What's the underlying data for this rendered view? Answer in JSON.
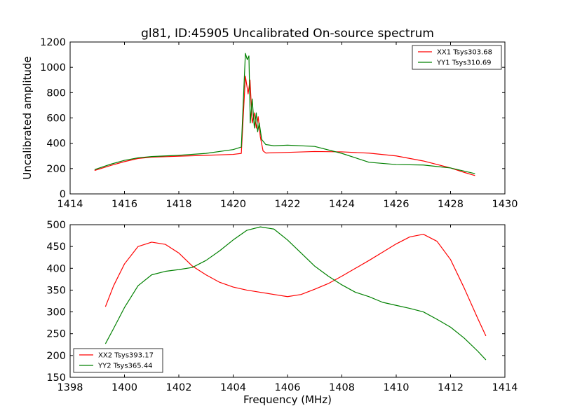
{
  "figure": {
    "title": "gl81, ID:45905 Uncalibrated On-source spectrum"
  },
  "chart_data": [
    {
      "type": "line",
      "title": "gl81, ID:45905 Uncalibrated On-source spectrum",
      "xlabel": "",
      "ylabel": "Uncalibrated amplitude",
      "xlim": [
        1414,
        1430
      ],
      "ylim": [
        0,
        1200
      ],
      "xticks": [
        1414,
        1416,
        1418,
        1420,
        1422,
        1424,
        1426,
        1428,
        1430
      ],
      "yticks": [
        0,
        200,
        400,
        600,
        800,
        1000,
        1200
      ],
      "grid": false,
      "legend": "top-right",
      "series": [
        {
          "name": "XX1 Tsys303.68",
          "color": "#ff0000",
          "x": [
            1414.9,
            1415.5,
            1416.0,
            1416.5,
            1417.0,
            1418.0,
            1419.0,
            1420.0,
            1420.3,
            1420.45,
            1420.55,
            1420.62,
            1420.7,
            1420.78,
            1420.85,
            1420.92,
            1421.0,
            1421.1,
            1421.2,
            1422.0,
            1423.0,
            1424.0,
            1425.0,
            1426.0,
            1427.0,
            1428.0,
            1428.5,
            1428.9
          ],
          "y": [
            185,
            225,
            255,
            280,
            290,
            298,
            305,
            312,
            320,
            930,
            790,
            900,
            560,
            640,
            520,
            610,
            450,
            340,
            323,
            328,
            335,
            332,
            322,
            300,
            260,
            205,
            170,
            145
          ]
        },
        {
          "name": "YY1 Tsys310.69",
          "color": "#008000",
          "x": [
            1414.9,
            1415.5,
            1416.0,
            1416.5,
            1417.0,
            1418.0,
            1419.0,
            1420.0,
            1420.3,
            1420.45,
            1420.52,
            1420.58,
            1420.63,
            1420.7,
            1420.78,
            1420.85,
            1420.9,
            1420.96,
            1421.05,
            1421.2,
            1421.5,
            1422.0,
            1423.0,
            1424.0,
            1425.0,
            1426.0,
            1427.0,
            1428.0,
            1428.5,
            1428.9
          ],
          "y": [
            192,
            235,
            265,
            285,
            295,
            305,
            320,
            350,
            370,
            1110,
            1060,
            1090,
            560,
            750,
            520,
            640,
            490,
            560,
            430,
            390,
            380,
            385,
            375,
            320,
            250,
            232,
            228,
            205,
            180,
            160
          ]
        }
      ]
    },
    {
      "type": "line",
      "title": "",
      "xlabel": "Frequency (MHz)",
      "ylabel": "",
      "xlim": [
        1398,
        1414
      ],
      "ylim": [
        150,
        500
      ],
      "xticks": [
        1398,
        1400,
        1402,
        1404,
        1406,
        1408,
        1410,
        1412,
        1414
      ],
      "yticks": [
        150,
        200,
        250,
        300,
        350,
        400,
        450,
        500
      ],
      "grid": false,
      "legend": "bottom-left",
      "series": [
        {
          "name": "XX2 Tsys393.17",
          "color": "#ff0000",
          "x": [
            1399.3,
            1399.6,
            1400.0,
            1400.5,
            1401.0,
            1401.5,
            1402.0,
            1402.5,
            1403.0,
            1403.5,
            1404.0,
            1404.5,
            1405.0,
            1405.5,
            1406.0,
            1406.5,
            1407.0,
            1407.5,
            1408.0,
            1408.5,
            1409.0,
            1409.5,
            1410.0,
            1410.5,
            1411.0,
            1411.5,
            1412.0,
            1412.5,
            1413.0,
            1413.3
          ],
          "y": [
            312,
            360,
            410,
            450,
            460,
            455,
            435,
            405,
            385,
            368,
            357,
            350,
            345,
            340,
            335,
            340,
            352,
            365,
            382,
            400,
            418,
            437,
            456,
            472,
            478,
            462,
            420,
            355,
            285,
            245
          ]
        },
        {
          "name": "YY2 Tsys365.44",
          "color": "#008000",
          "x": [
            1399.3,
            1399.6,
            1400.0,
            1400.5,
            1401.0,
            1401.5,
            1402.0,
            1402.5,
            1403.0,
            1403.5,
            1404.0,
            1404.5,
            1405.0,
            1405.5,
            1406.0,
            1406.5,
            1407.0,
            1407.5,
            1408.0,
            1408.5,
            1409.0,
            1409.5,
            1410.0,
            1410.5,
            1411.0,
            1411.5,
            1412.0,
            1412.5,
            1413.0,
            1413.3
          ],
          "y": [
            227,
            262,
            310,
            360,
            385,
            393,
            397,
            402,
            418,
            440,
            465,
            487,
            495,
            490,
            465,
            435,
            405,
            382,
            362,
            345,
            335,
            322,
            315,
            308,
            300,
            283,
            265,
            240,
            210,
            190
          ]
        }
      ]
    }
  ]
}
